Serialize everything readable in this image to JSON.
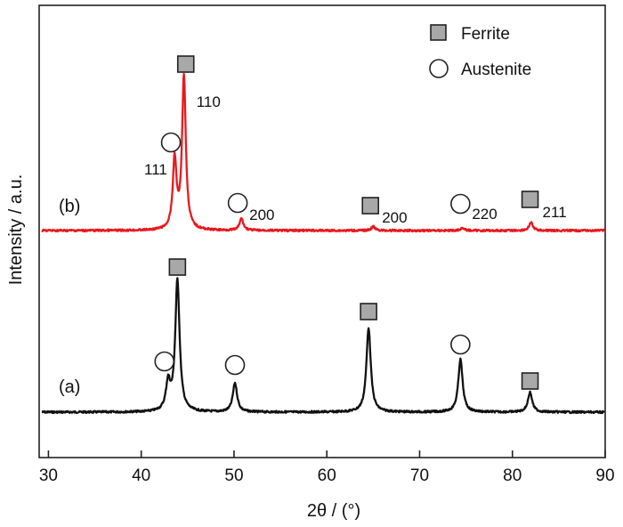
{
  "chart_data": {
    "type": "line",
    "xlabel": "2θ / (°)",
    "ylabel": "Intensity / a.u.",
    "xlim": [
      29,
      90
    ],
    "x_ticks": [
      30,
      40,
      50,
      60,
      70,
      80,
      90
    ],
    "grid": false,
    "legend": {
      "placement": "top-right",
      "entries": [
        {
          "label": "Ferrite",
          "marker": "square"
        },
        {
          "label": "Austenite",
          "marker": "circle"
        }
      ]
    },
    "series": [
      {
        "name": "(a)",
        "color": "#111111",
        "baseline": 0,
        "peaks": [
          {
            "x": 42.9,
            "height": 21,
            "phase": "Austenite"
          },
          {
            "x": 43.9,
            "height": 100,
            "phase": "Ferrite"
          },
          {
            "x": 50.1,
            "height": 22,
            "phase": "Austenite"
          },
          {
            "x": 64.5,
            "height": 64,
            "phase": "Ferrite"
          },
          {
            "x": 74.4,
            "height": 40,
            "phase": "Austenite"
          },
          {
            "x": 81.9,
            "height": 15,
            "phase": "Ferrite"
          }
        ]
      },
      {
        "name": "(b)",
        "color": "#e8191e",
        "baseline": 0,
        "peaks": [
          {
            "x": 43.6,
            "height": 52,
            "phase": "Austenite",
            "hkl": "111"
          },
          {
            "x": 44.6,
            "height": 115,
            "phase": "Ferrite",
            "hkl": "110"
          },
          {
            "x": 50.8,
            "height": 9,
            "phase": "Austenite",
            "hkl": "200"
          },
          {
            "x": 65.0,
            "height": 3,
            "phase": "Ferrite",
            "hkl": "200"
          },
          {
            "x": 74.6,
            "height": 2,
            "phase": "Austenite",
            "hkl": "220"
          },
          {
            "x": 82.0,
            "height": 6,
            "phase": "Ferrite",
            "hkl": "211"
          }
        ]
      }
    ],
    "annotations": [
      {
        "series": "(b)",
        "marker": "square",
        "x": 44.8,
        "label": "110"
      },
      {
        "series": "(b)",
        "marker": "circle",
        "x": 43.2,
        "label": "111"
      },
      {
        "series": "(b)",
        "marker": "circle",
        "x": 50.4,
        "label": "200"
      },
      {
        "series": "(b)",
        "marker": "square",
        "x": 64.7,
        "label": "200"
      },
      {
        "series": "(b)",
        "marker": "circle",
        "x": 74.4,
        "label": "220"
      },
      {
        "series": "(b)",
        "marker": "square",
        "x": 81.9,
        "label": "211"
      },
      {
        "series": "(a)",
        "marker": "square",
        "x": 43.9,
        "label": ""
      },
      {
        "series": "(a)",
        "marker": "circle",
        "x": 42.5,
        "label": ""
      },
      {
        "series": "(a)",
        "marker": "circle",
        "x": 50.1,
        "label": ""
      },
      {
        "series": "(a)",
        "marker": "square",
        "x": 64.5,
        "label": ""
      },
      {
        "series": "(a)",
        "marker": "circle",
        "x": 74.4,
        "label": ""
      },
      {
        "series": "(a)",
        "marker": "square",
        "x": 81.9,
        "label": ""
      }
    ]
  }
}
